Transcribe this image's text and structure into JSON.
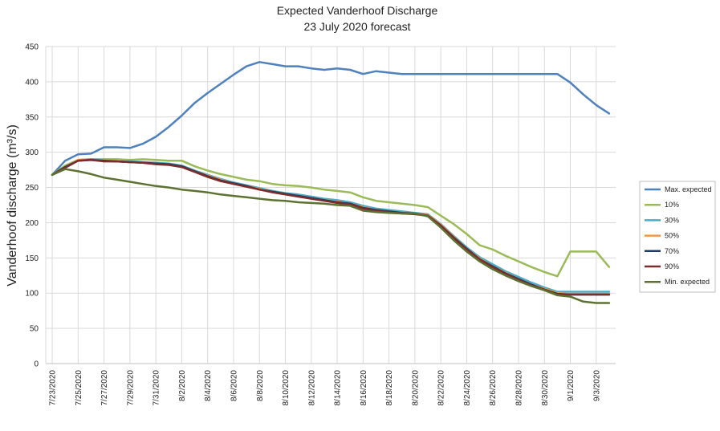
{
  "chart_data": {
    "type": "line",
    "title": "Expected Vanderhoof Discharge",
    "subtitle": "23 July 2020 forecast",
    "xlabel": "",
    "ylabel": "Vanderhoof discharge (m³/s)",
    "ylim": [
      0,
      450
    ],
    "yticks": [
      0,
      50,
      100,
      150,
      200,
      250,
      300,
      350,
      400,
      450
    ],
    "grid": true,
    "legend_position": "right",
    "x": [
      "7/23/2020",
      "7/24/2020",
      "7/25/2020",
      "7/26/2020",
      "7/27/2020",
      "7/28/2020",
      "7/29/2020",
      "7/30/2020",
      "7/31/2020",
      "8/1/2020",
      "8/2/2020",
      "8/3/2020",
      "8/4/2020",
      "8/5/2020",
      "8/6/2020",
      "8/7/2020",
      "8/8/2020",
      "8/9/2020",
      "8/10/2020",
      "8/11/2020",
      "8/12/2020",
      "8/13/2020",
      "8/14/2020",
      "8/15/2020",
      "8/16/2020",
      "8/17/2020",
      "8/18/2020",
      "8/19/2020",
      "8/20/2020",
      "8/21/2020",
      "8/22/2020",
      "8/23/2020",
      "8/24/2020",
      "8/25/2020",
      "8/26/2020",
      "8/27/2020",
      "8/28/2020",
      "8/29/2020",
      "8/30/2020",
      "8/31/2020",
      "9/1/2020",
      "9/2/2020",
      "9/3/2020",
      "9/4/2020"
    ],
    "xtick_labels": [
      "7/23/2020",
      "7/25/2020",
      "7/27/2020",
      "7/29/2020",
      "7/31/2020",
      "8/2/2020",
      "8/4/2020",
      "8/6/2020",
      "8/8/2020",
      "8/10/2020",
      "8/12/2020",
      "8/14/2020",
      "8/16/2020",
      "8/18/2020",
      "8/20/2020",
      "8/22/2020",
      "8/24/2020",
      "8/26/2020",
      "8/28/2020",
      "8/30/2020",
      "9/1/2020",
      "9/3/2020"
    ],
    "series": [
      {
        "name": "Max. expected",
        "color": "#4f81bd",
        "values": [
          268,
          288,
          297,
          298,
          307,
          307,
          306,
          312,
          322,
          336,
          352,
          370,
          384,
          397,
          410,
          422,
          428,
          425,
          422,
          422,
          419,
          417,
          419,
          417,
          411,
          415,
          413,
          411,
          411,
          411,
          411,
          411,
          411,
          411,
          411,
          411,
          411,
          411,
          411,
          411,
          399,
          382,
          367,
          355
        ]
      },
      {
        "name": "10%",
        "color": "#9bbb59",
        "values": [
          268,
          281,
          289,
          290,
          290,
          290,
          289,
          290,
          289,
          288,
          288,
          280,
          274,
          269,
          265,
          261,
          259,
          255,
          253,
          252,
          250,
          247,
          245,
          243,
          236,
          231,
          229,
          227,
          225,
          222,
          210,
          198,
          184,
          168,
          162,
          153,
          145,
          137,
          130,
          124,
          159,
          159,
          159,
          137
        ]
      },
      {
        "name": "30%",
        "color": "#4bacc6",
        "values": [
          268,
          279,
          289,
          290,
          288,
          287,
          287,
          286,
          285,
          284,
          281,
          274,
          268,
          262,
          257,
          253,
          249,
          245,
          242,
          240,
          237,
          234,
          232,
          229,
          224,
          220,
          218,
          216,
          214,
          212,
          198,
          181,
          165,
          151,
          141,
          131,
          123,
          115,
          108,
          102,
          102,
          102,
          102,
          102
        ]
      },
      {
        "name": "50%",
        "color": "#f79646",
        "values": [
          268,
          279,
          289,
          289,
          288,
          287,
          286,
          285,
          284,
          283,
          280,
          273,
          267,
          261,
          256,
          252,
          248,
          244,
          241,
          238,
          235,
          232,
          230,
          227,
          222,
          218,
          216,
          214,
          213,
          211,
          197,
          180,
          163,
          149,
          138,
          129,
          120,
          112,
          106,
          100,
          99,
          99,
          99,
          99
        ]
      },
      {
        "name": "70%",
        "color": "#1f3864",
        "values": [
          268,
          279,
          288,
          289,
          288,
          287,
          286,
          285,
          284,
          283,
          280,
          273,
          266,
          260,
          256,
          252,
          247,
          244,
          241,
          238,
          235,
          232,
          229,
          227,
          221,
          218,
          216,
          214,
          213,
          210,
          196,
          179,
          163,
          148,
          138,
          128,
          120,
          112,
          105,
          99,
          98,
          98,
          98,
          98
        ]
      },
      {
        "name": "90%",
        "color": "#7b2c2c",
        "values": [
          268,
          278,
          288,
          289,
          287,
          287,
          286,
          285,
          283,
          282,
          279,
          272,
          265,
          259,
          255,
          251,
          247,
          243,
          240,
          237,
          234,
          231,
          228,
          226,
          220,
          217,
          215,
          213,
          212,
          210,
          196,
          178,
          162,
          148,
          137,
          127,
          119,
          111,
          105,
          98,
          98,
          98,
          98,
          98
        ]
      },
      {
        "name": "Min. expected",
        "color": "#5d7232",
        "values": [
          268,
          276,
          273,
          269,
          264,
          261,
          258,
          255,
          252,
          250,
          247,
          245,
          243,
          240,
          238,
          236,
          234,
          232,
          231,
          229,
          228,
          227,
          225,
          224,
          217,
          215,
          214,
          213,
          213,
          209,
          193,
          175,
          159,
          145,
          134,
          125,
          117,
          110,
          104,
          97,
          95,
          88,
          86,
          86
        ]
      }
    ]
  }
}
